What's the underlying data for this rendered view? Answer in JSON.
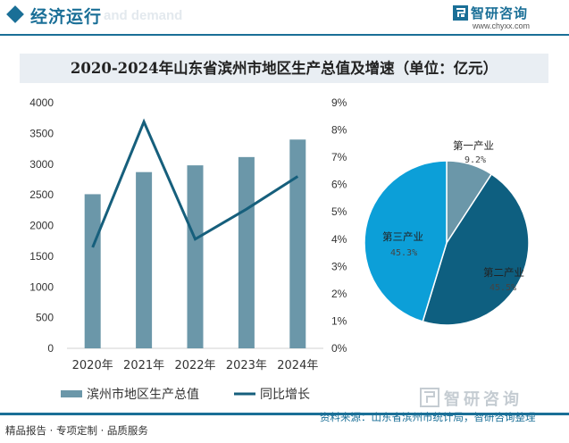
{
  "header": {
    "title": "经济运行",
    "bg_text": "and demand",
    "logo_name": "智研咨询",
    "logo_url": "www.chyxx.com"
  },
  "colors": {
    "bar": "#6b97a9",
    "line": "#165f7c",
    "accent": "#1a6f97",
    "pie_primary": "#6b97a9",
    "pie_secondary": "#0e5f80",
    "pie_tertiary": "#0c9fd8"
  },
  "chart_data": [
    {
      "type": "bar+line",
      "title": "2020-2024年山东省滨州市地区生产总值及增速（单位：亿元）",
      "categories": [
        "2020年",
        "2021年",
        "2022年",
        "2023年",
        "2024年"
      ],
      "series": [
        {
          "name": "滨州市地区生产总值",
          "type": "bar",
          "axis": "left",
          "values": [
            2510,
            2870,
            2980,
            3115,
            3400
          ]
        },
        {
          "name": "同比增长",
          "type": "line",
          "axis": "right",
          "unit": "%",
          "values": [
            3.7,
            8.3,
            4.0,
            5.1,
            6.3
          ]
        }
      ],
      "y_left": {
        "min": 0,
        "max": 4000,
        "step": 500,
        "ticks": [
          "0",
          "500",
          "1000",
          "1500",
          "2000",
          "2500",
          "3000",
          "3500",
          "4000"
        ]
      },
      "y_right": {
        "min": 0,
        "max": 9,
        "step": 1,
        "ticks": [
          "0%",
          "1%",
          "2%",
          "3%",
          "4%",
          "5%",
          "6%",
          "7%",
          "8%",
          "9%"
        ]
      },
      "grid": false,
      "legend": "bottom"
    },
    {
      "type": "pie",
      "slices": [
        {
          "label": "第一产业",
          "value": 9.2,
          "value_label": "9.2%"
        },
        {
          "label": "第二产业",
          "value": 45.5,
          "value_label": "45.5%"
        },
        {
          "label": "第三产业",
          "value": 45.3,
          "value_label": "45.3%"
        }
      ]
    }
  ],
  "footer": {
    "left": "精品报告 · 专项定制 · 品质服务",
    "source": "资料来源：山东省滨州市统计局，智研咨询整理",
    "brand": "智研咨询"
  }
}
